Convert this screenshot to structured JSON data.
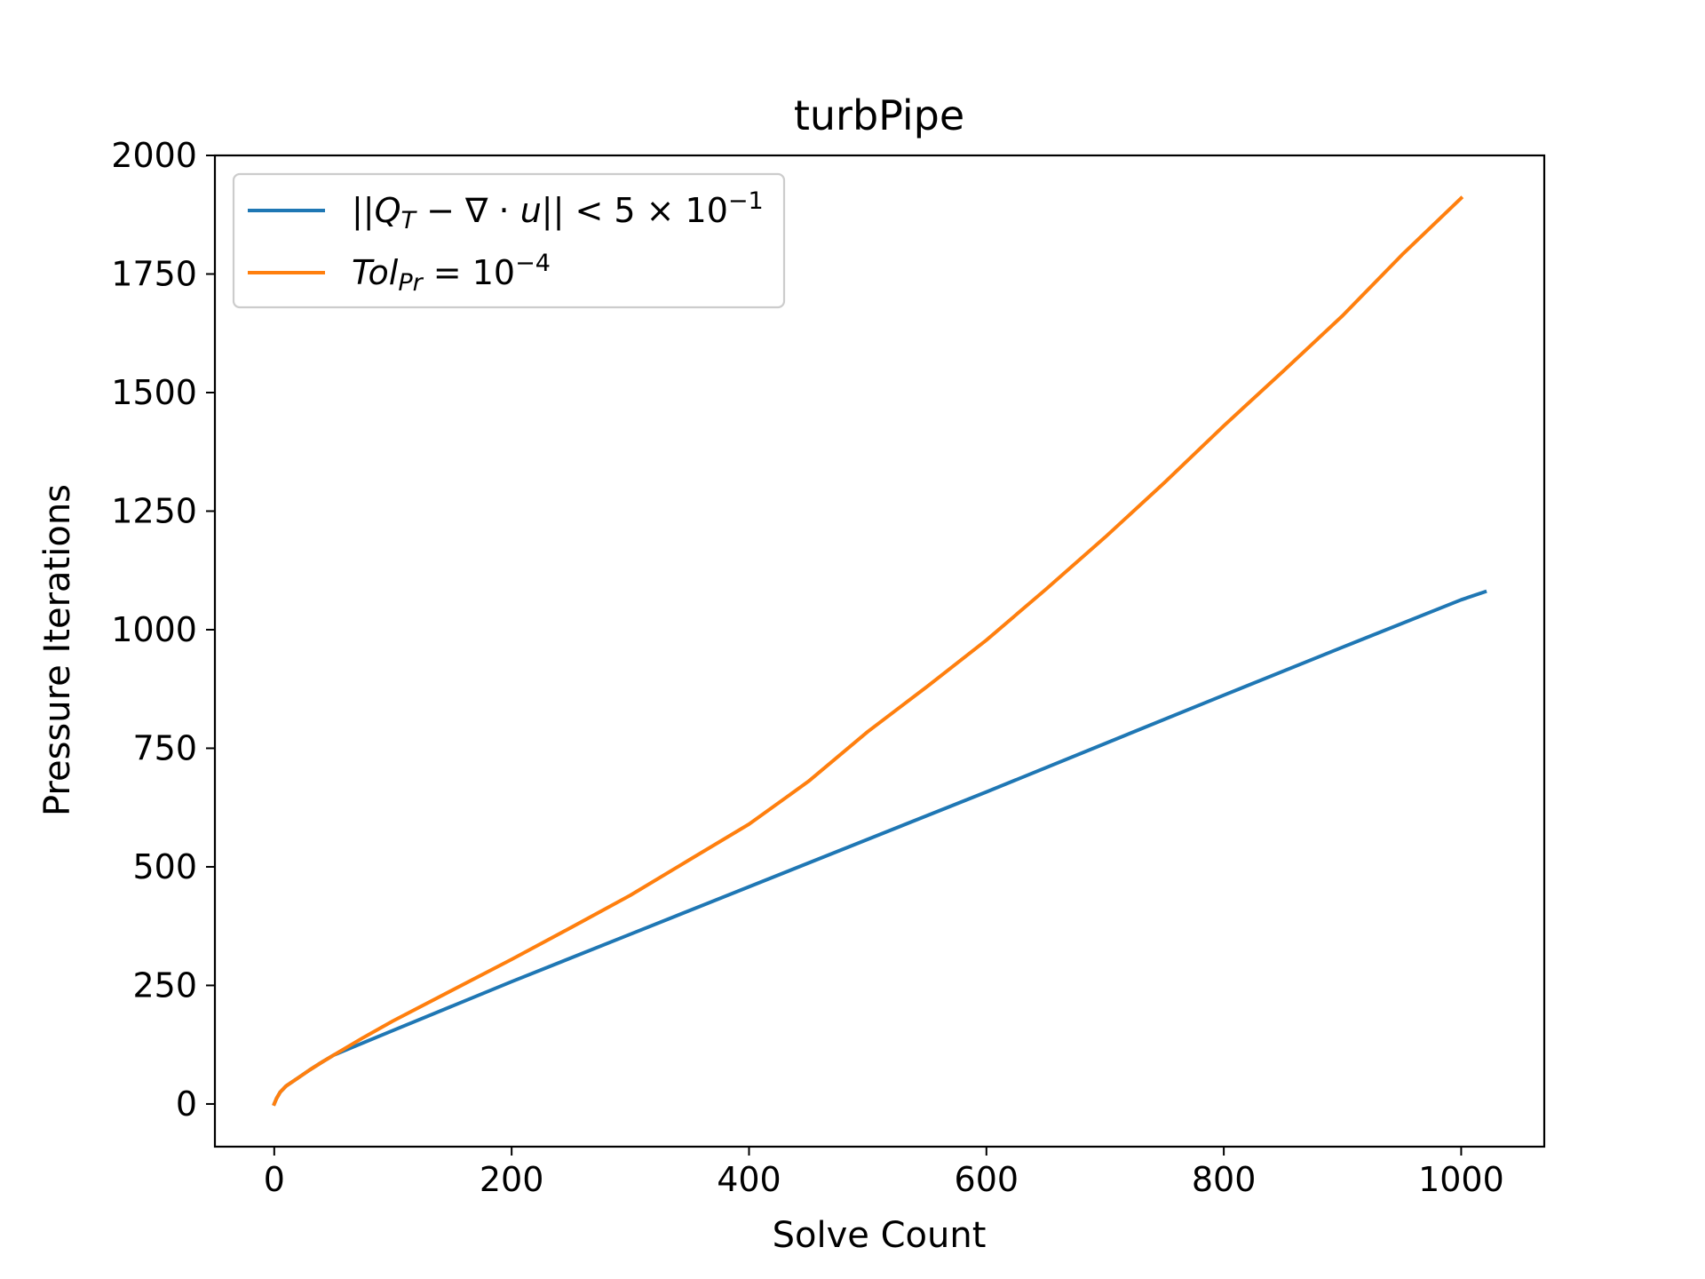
{
  "chart_data": {
    "type": "line",
    "title": "turbPipe",
    "xlabel": "Solve Count",
    "ylabel": "Pressure Iterations",
    "xlim": [
      -50,
      1070
    ],
    "ylim": [
      -90,
      2000
    ],
    "x_ticks": [
      0,
      200,
      400,
      600,
      800,
      1000
    ],
    "x_tick_labels": [
      "0",
      "200",
      "400",
      "600",
      "800",
      "1000"
    ],
    "y_ticks": [
      0,
      250,
      500,
      750,
      1000,
      1250,
      1500,
      1750,
      2000
    ],
    "y_tick_labels": [
      "0",
      "250",
      "500",
      "750",
      "1000",
      "1250",
      "1500",
      "1750",
      "2000"
    ],
    "grid": false,
    "legend_position": "top-left",
    "colors": {
      "series_1": "#1f77b4",
      "series_2": "#ff7f0e"
    },
    "series": [
      {
        "name": "||Q_T − ∇·u|| < 5 × 10^−1",
        "legend_parts": {
          "open": "||",
          "q": "Q",
          "q_sub": "T",
          "minus": " − ∇ · ",
          "u": "u",
          "close": "|| < 5 × 10",
          "exp": "−1"
        },
        "color": "#1f77b4",
        "x": [
          0,
          2,
          5,
          10,
          20,
          30,
          40,
          50,
          100,
          200,
          300,
          400,
          500,
          600,
          700,
          800,
          900,
          1000,
          1020
        ],
        "y": [
          0,
          12,
          25,
          38,
          55,
          72,
          88,
          103,
          155,
          258,
          358,
          458,
          558,
          658,
          760,
          862,
          963,
          1063,
          1080
        ]
      },
      {
        "name": "Tol_Pr = 10^−4",
        "legend_parts": {
          "tol": "Tol",
          "tol_sub": "Pr",
          "eq": " = 10",
          "exp": "−4"
        },
        "color": "#ff7f0e",
        "x": [
          0,
          2,
          5,
          10,
          20,
          30,
          40,
          50,
          75,
          100,
          150,
          200,
          250,
          300,
          350,
          400,
          450,
          500,
          550,
          600,
          650,
          700,
          750,
          800,
          850,
          900,
          950,
          1000
        ],
        "y": [
          0,
          12,
          25,
          38,
          55,
          72,
          88,
          103,
          140,
          175,
          240,
          305,
          372,
          440,
          515,
          590,
          680,
          785,
          880,
          978,
          1085,
          1195,
          1310,
          1430,
          1545,
          1662,
          1790,
          1910
        ]
      }
    ]
  }
}
